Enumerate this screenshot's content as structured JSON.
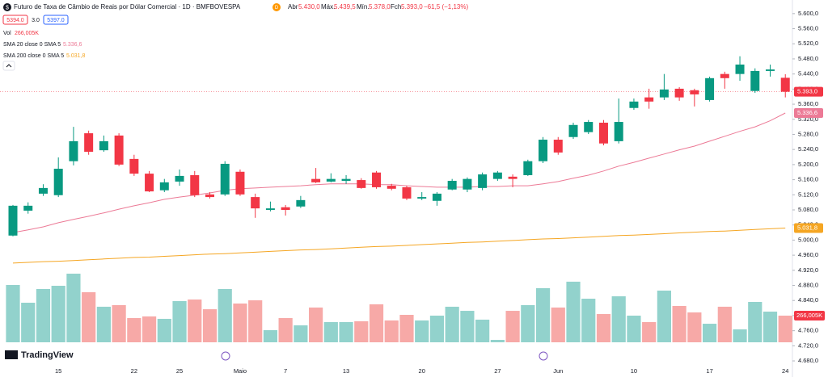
{
  "header": {
    "title": "Futuro de Taxa de Câmbio de Reais por Dólar Comercial · 1D · BMFBOVESPA",
    "badge": "D",
    "open_label": "Abr",
    "open_value": "5.430,0",
    "high_label": "Máx.",
    "high_value": "5.439,5",
    "low_label": "Mín.",
    "low_value": "5.378,0",
    "close_label": "Fch",
    "close_value": "5.393,0",
    "change": "−61,5 (−1,13%)",
    "sell": "5394.0",
    "spread": "3.0",
    "buy": "5397.0",
    "vol_label": "Vol",
    "vol_value": "266,005K",
    "sma20_label": "SMA 20 close 0 SMA 5",
    "sma20_value": "5.336,6",
    "sma200_label": "SMA 200 close 0 SMA 5",
    "sma200_value": "5.031,8",
    "logo": "TradingView"
  },
  "chart_data": {
    "type": "candlestick",
    "x": [
      null,
      null,
      null,
      "15",
      null,
      null,
      null,
      null,
      "22",
      null,
      null,
      "25",
      null,
      null,
      null,
      "Maio",
      null,
      null,
      "7",
      null,
      null,
      null,
      "13",
      null,
      null,
      null,
      null,
      "20",
      null,
      null,
      null,
      null,
      "27",
      null,
      null,
      null,
      "Jun",
      null,
      null,
      null,
      null,
      "10",
      null,
      null,
      null,
      null,
      "17",
      null,
      null,
      null,
      null,
      "24"
    ],
    "open": [
      5012,
      5078,
      5123,
      5119,
      5209,
      5283,
      5238,
      5277,
      5215,
      5176,
      5132,
      5155,
      5172,
      5121,
      5121,
      5181,
      5114,
      5080,
      5087,
      5089,
      5162,
      5155,
      5157,
      5159,
      5179,
      5144,
      5140,
      5110,
      5104,
      5134,
      5134,
      5138,
      5162,
      5168,
      5172,
      5209,
      5266,
      5273,
      5286,
      5311,
      5262,
      5350,
      5378,
      5378,
      5401,
      5397,
      5371,
      5440,
      5440,
      5395,
      5448,
      5430
    ],
    "high": [
      5093,
      5100,
      5148,
      5219,
      5300,
      5290,
      5277,
      5283,
      5226,
      5183,
      5162,
      5187,
      5183,
      5127,
      5209,
      5187,
      5123,
      5102,
      5093,
      5117,
      5191,
      5177,
      5172,
      5164,
      5183,
      5149,
      5144,
      5127,
      5127,
      5162,
      5166,
      5179,
      5183,
      5174,
      5213,
      5273,
      5273,
      5311,
      5318,
      5318,
      5375,
      5375,
      5401,
      5440,
      5405,
      5401,
      5433,
      5446,
      5487,
      5455,
      5465,
      5439.5
    ],
    "low": [
      5010,
      5070,
      5117,
      5114,
      5198,
      5226,
      5234,
      5196,
      5170,
      5127,
      5127,
      5144,
      5114,
      5110,
      5117,
      5117,
      5059,
      5076,
      5065,
      5085,
      5151,
      5153,
      5149,
      5136,
      5136,
      5132,
      5106,
      5106,
      5091,
      5132,
      5127,
      5132,
      5157,
      5140,
      5170,
      5204,
      5226,
      5268,
      5281,
      5251,
      5256,
      5345,
      5348,
      5371,
      5369,
      5354,
      5367,
      5401,
      5422,
      5390,
      5433,
      5378
    ],
    "close": [
      5091,
      5091,
      5138,
      5189,
      5262,
      5234,
      5262,
      5200,
      5176,
      5129,
      5153,
      5170,
      5119,
      5114,
      5202,
      5121,
      5084,
      5084,
      5080,
      5106,
      5153,
      5162,
      5162,
      5138,
      5140,
      5136,
      5110,
      5114,
      5123,
      5157,
      5162,
      5174,
      5179,
      5162,
      5209,
      5266,
      5232,
      5305,
      5313,
      5256,
      5313,
      5367,
      5367,
      5399,
      5378,
      5386,
      5429,
      5429,
      5465,
      5448,
      5452,
      5393
    ],
    "volume": [
      572000,
      395000,
      532000,
      564000,
      685000,
      500000,
      355000,
      371000,
      242000,
      258000,
      234000,
      411000,
      427000,
      330000,
      532000,
      387000,
      419000,
      121000,
      242000,
      169000,
      347000,
      202000,
      202000,
      210000,
      379000,
      218000,
      274000,
      218000,
      266000,
      355000,
      314000,
      226000,
      24000,
      314000,
      371000,
      540000,
      347000,
      605000,
      435000,
      282000,
      459000,
      266000,
      202000,
      516000,
      363000,
      298000,
      185000,
      355000,
      129000,
      403000,
      306000,
      266005
    ],
    "up_color": "#089981",
    "down_color": "#f23645",
    "up_volume_color": "#92d2cc",
    "down_volume_color": "#f7a9a7",
    "series": [
      {
        "name": "SMA 20",
        "color": "#ec7a96",
        "values": [
          5020,
          5027,
          5035,
          5046,
          5055,
          5063,
          5072,
          5082,
          5091,
          5099,
          5108,
          5114,
          5119,
          5125,
          5132,
          5136,
          5138,
          5140,
          5142,
          5144,
          5147,
          5149,
          5149,
          5149,
          5147,
          5147,
          5144,
          5142,
          5140,
          5140,
          5140,
          5142,
          5142,
          5144,
          5144,
          5149,
          5155,
          5164,
          5172,
          5183,
          5196,
          5206,
          5217,
          5228,
          5239,
          5249,
          5262,
          5275,
          5288,
          5300,
          5316,
          5336.6
        ]
      },
      {
        "name": "SMA 200",
        "color": "#f5a623",
        "values": [
          4939,
          4941,
          4943,
          4944,
          4946,
          4948,
          4950,
          4952,
          4954,
          4955,
          4957,
          4959,
          4961,
          4963,
          4964,
          4966,
          4968,
          4970,
          4972,
          4974,
          4975,
          4977,
          4979,
          4981,
          4983,
          4984,
          4986,
          4988,
          4990,
          4992,
          4994,
          4995,
          4997,
          4999,
          5001,
          5003,
          5004,
          5006,
          5008,
          5010,
          5012,
          5013,
          5015,
          5017,
          5019,
          5021,
          5023,
          5024,
          5026,
          5028,
          5030,
          5031.8
        ]
      }
    ],
    "ylim": [
      4663,
      5636
    ],
    "yticks": [
      {
        "value": 5600,
        "label": "5.600,0"
      },
      {
        "value": 5560,
        "label": "5.560,0"
      },
      {
        "value": 5520,
        "label": "5.520,0"
      },
      {
        "value": 5480,
        "label": "5.480,0"
      },
      {
        "value": 5440,
        "label": "5.440,0"
      },
      {
        "value": 5400,
        "label": "5.400,0"
      },
      {
        "value": 5360,
        "label": "5.360,0"
      },
      {
        "value": 5320,
        "label": "5.320,0"
      },
      {
        "value": 5280,
        "label": "5.280,0"
      },
      {
        "value": 5240,
        "label": "5.240,0"
      },
      {
        "value": 5200,
        "label": "5.200,0"
      },
      {
        "value": 5160,
        "label": "5.160,0"
      },
      {
        "value": 5120,
        "label": "5.120,0"
      },
      {
        "value": 5080,
        "label": "5.080,0"
      },
      {
        "value": 5040,
        "label": "5.040,0"
      },
      {
        "value": 5000,
        "label": "5.000,0"
      },
      {
        "value": 4960,
        "label": "4.960,0"
      },
      {
        "value": 4920,
        "label": "4.920,0"
      },
      {
        "value": 4880,
        "label": "4.880,0"
      },
      {
        "value": 4840,
        "label": "4.840,0"
      },
      {
        "value": 4800,
        "label": "4.800,0"
      },
      {
        "value": 4760,
        "label": "4.760,0"
      },
      {
        "value": 4720,
        "label": "4.720,0"
      },
      {
        "value": 4680,
        "label": "4.680,0"
      }
    ],
    "grid": false
  }
}
